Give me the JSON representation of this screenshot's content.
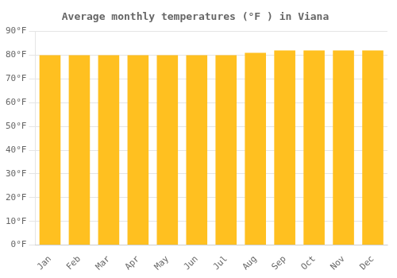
{
  "chart_data": {
    "type": "bar",
    "title": "Average monthly temperatures (°F ) in Viana",
    "categories": [
      "Jan",
      "Feb",
      "Mar",
      "Apr",
      "May",
      "Jun",
      "Jul",
      "Aug",
      "Sep",
      "Oct",
      "Nov",
      "Dec"
    ],
    "values": [
      80,
      80,
      80,
      80,
      80,
      80,
      80,
      81,
      82,
      82,
      82,
      82
    ],
    "color": "#FFC020",
    "ylim": [
      0,
      90
    ],
    "yticks": [
      {
        "value": 0,
        "label": "0°F"
      },
      {
        "value": 10,
        "label": "10°F"
      },
      {
        "value": 20,
        "label": "20°F"
      },
      {
        "value": 30,
        "label": "30°F"
      },
      {
        "value": 40,
        "label": "40°F"
      },
      {
        "value": 50,
        "label": "50°F"
      },
      {
        "value": 60,
        "label": "60°F"
      },
      {
        "value": 70,
        "label": "70°F"
      },
      {
        "value": 80,
        "label": "80°F"
      },
      {
        "value": 90,
        "label": "90°F"
      }
    ],
    "grid": true
  }
}
